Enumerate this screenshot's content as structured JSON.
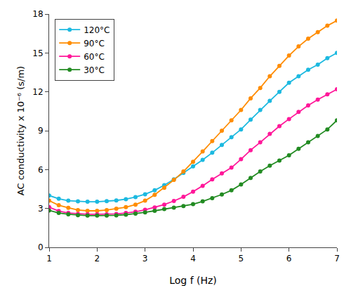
{
  "chart_data": {
    "type": "line",
    "xlabel": "Log f (Hz)",
    "ylabel": "AC conductivity x 10⁻⁶ (s/m)",
    "x": [
      1.0,
      1.2,
      1.4,
      1.6,
      1.8,
      2.0,
      2.2,
      2.4,
      2.6,
      2.8,
      3.0,
      3.2,
      3.4,
      3.6,
      3.8,
      4.0,
      4.2,
      4.4,
      4.6,
      4.8,
      5.0,
      5.2,
      5.4,
      5.6,
      5.8,
      6.0,
      6.2,
      6.4,
      6.6,
      6.8,
      7.0
    ],
    "series": [
      {
        "name": "120°C",
        "color": "#1cb9e0",
        "values": [
          4.0,
          3.75,
          3.6,
          3.55,
          3.52,
          3.52,
          3.56,
          3.62,
          3.72,
          3.88,
          4.1,
          4.4,
          4.8,
          5.25,
          5.75,
          6.25,
          6.75,
          7.3,
          7.9,
          8.5,
          9.1,
          9.85,
          10.6,
          11.3,
          12.0,
          12.7,
          13.2,
          13.7,
          14.1,
          14.6,
          15.0
        ]
      },
      {
        "name": "90°C",
        "color": "#ff8c00",
        "values": [
          3.6,
          3.25,
          3.05,
          2.88,
          2.82,
          2.82,
          2.88,
          2.98,
          3.1,
          3.3,
          3.6,
          4.05,
          4.6,
          5.2,
          5.85,
          6.6,
          7.4,
          8.2,
          9.0,
          9.8,
          10.6,
          11.5,
          12.3,
          13.2,
          14.0,
          14.8,
          15.5,
          16.1,
          16.6,
          17.1,
          17.5
        ]
      },
      {
        "name": "60°C",
        "color": "#ff1799",
        "values": [
          3.1,
          2.8,
          2.65,
          2.58,
          2.55,
          2.55,
          2.55,
          2.58,
          2.65,
          2.75,
          2.9,
          3.08,
          3.3,
          3.58,
          3.9,
          4.3,
          4.75,
          5.25,
          5.7,
          6.15,
          6.8,
          7.5,
          8.1,
          8.75,
          9.35,
          9.9,
          10.45,
          10.95,
          11.4,
          11.8,
          12.2
        ]
      },
      {
        "name": "30°C",
        "color": "#228b22",
        "values": [
          2.85,
          2.65,
          2.55,
          2.48,
          2.45,
          2.45,
          2.45,
          2.47,
          2.52,
          2.6,
          2.7,
          2.82,
          2.95,
          3.07,
          3.18,
          3.33,
          3.55,
          3.8,
          4.08,
          4.4,
          4.85,
          5.35,
          5.85,
          6.3,
          6.7,
          7.1,
          7.6,
          8.1,
          8.6,
          9.1,
          9.8
        ]
      }
    ],
    "xlim": [
      1,
      7
    ],
    "xticks": [
      1,
      2,
      3,
      4,
      5,
      6,
      7
    ],
    "ylim": [
      0,
      18
    ],
    "yticks": [
      0,
      3,
      6,
      9,
      12,
      15,
      18
    ],
    "grid": false,
    "legend": "upper left",
    "marker": "circle",
    "line_style": "solid"
  }
}
